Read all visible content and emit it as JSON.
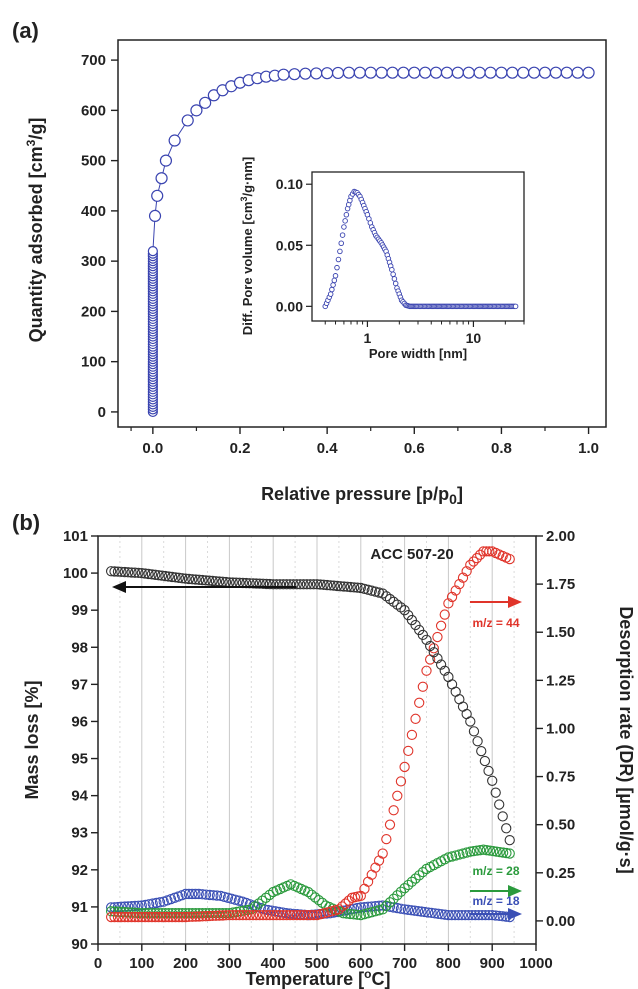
{
  "panel_a": {
    "panel_label": "(a)",
    "xlabel": "Relative pressure [p/p",
    "xlabel_sub": "0",
    "xlabel_end": "]",
    "ylabel": "Quantity adsorbed [cm",
    "ylabel_sup": "3",
    "ylabel_end": "/g]",
    "x_ticks": [
      "0.0",
      "0.2",
      "0.4",
      "0.6",
      "0.8",
      "1.0"
    ],
    "y_ticks": [
      "0",
      "100",
      "200",
      "300",
      "400",
      "500",
      "600",
      "700"
    ],
    "inset": {
      "xlabel": "Pore width [nm]",
      "ylabel": "Diff. Pore volume [cm",
      "ylabel_sup": "3",
      "ylabel_end": "/g·nm]",
      "x_ticks": [
        "1",
        "10"
      ],
      "y_ticks": [
        "0.00",
        "0.05",
        "0.10"
      ]
    }
  },
  "panel_b": {
    "panel_label": "(b)",
    "title": "ACC 507-20",
    "xlabel": "Temperature [",
    "xlabel_sup": "o",
    "xlabel_end": "C]",
    "ylabel_left": "Mass loss [%]",
    "ylabel_right": "Desorption rate (DR) [µmol/g·s]",
    "x_ticks": [
      "0",
      "100",
      "200",
      "300",
      "400",
      "500",
      "600",
      "700",
      "800",
      "900",
      "1000"
    ],
    "y_left_ticks": [
      "90",
      "91",
      "92",
      "93",
      "94",
      "95",
      "96",
      "97",
      "98",
      "99",
      "100",
      "101"
    ],
    "y_right_ticks": [
      "0.00",
      "0.25",
      "0.50",
      "0.75",
      "1.00",
      "1.25",
      "1.50",
      "1.75",
      "2.00"
    ],
    "annotations": {
      "m44": "m/z = 44",
      "m28": "m/z = 28",
      "m18": "m/z = 18"
    }
  },
  "chart_data": [
    {
      "type": "scatter",
      "panel": "(a)",
      "xlabel": "Relative pressure [p/p0]",
      "ylabel": "Quantity adsorbed [cm3/g]",
      "xlim": [
        -0.08,
        1.04
      ],
      "ylim": [
        -30,
        740
      ],
      "marker_color": "#3a44b0",
      "x": [
        0.0,
        0.0,
        0.0,
        0.0,
        0.0,
        0.0,
        0.005,
        0.01,
        0.02,
        0.03,
        0.05,
        0.08,
        0.1,
        0.12,
        0.14,
        0.16,
        0.18,
        0.2,
        0.22,
        0.24,
        0.26,
        0.28,
        0.3,
        0.35,
        0.4,
        0.45,
        0.5,
        0.55,
        0.6,
        0.65,
        0.7,
        0.75,
        0.8,
        0.85,
        0.9,
        0.95,
        1.0
      ],
      "y": [
        0,
        60,
        120,
        180,
        250,
        320,
        390,
        430,
        465,
        500,
        540,
        580,
        600,
        615,
        630,
        640,
        648,
        655,
        660,
        664,
        667,
        669,
        671,
        673,
        674,
        675,
        675,
        675,
        675,
        675,
        675,
        675,
        675,
        675,
        675,
        675,
        675
      ]
    },
    {
      "type": "scatter",
      "panel": "(a) inset",
      "xlabel": "Pore width [nm]",
      "ylabel": "Diff. Pore volume [cm3/g·nm]",
      "x_scale": "log",
      "xlim": [
        0.3,
        30
      ],
      "ylim": [
        -0.012,
        0.11
      ],
      "marker_color": "#3a44b0",
      "x": [
        0.4,
        0.45,
        0.5,
        0.55,
        0.6,
        0.65,
        0.7,
        0.75,
        0.8,
        0.85,
        0.9,
        1.0,
        1.1,
        1.2,
        1.35,
        1.5,
        1.7,
        1.9,
        2.1,
        2.3,
        2.5,
        3,
        4,
        6,
        10,
        15,
        20,
        25
      ],
      "y": [
        0.0,
        0.01,
        0.025,
        0.045,
        0.065,
        0.08,
        0.09,
        0.094,
        0.093,
        0.09,
        0.085,
        0.075,
        0.065,
        0.058,
        0.052,
        0.045,
        0.03,
        0.015,
        0.005,
        0.001,
        0.0,
        0.0,
        0.0,
        0.0,
        0.0,
        0.0,
        0.0,
        0.0
      ]
    },
    {
      "type": "scatter",
      "panel": "(b)",
      "title": "ACC 507-20",
      "xlabel": "Temperature [oC]",
      "ylabel": "Mass loss [%]",
      "y2label": "Desorption rate (DR) [µmol/g·s]",
      "xlim": [
        0,
        1000
      ],
      "ylim": [
        90,
        101
      ],
      "y2lim": [
        -0.12,
        2.0
      ],
      "series": [
        {
          "name": "",
          "axis": "left",
          "color": "#333333",
          "x": [
            30,
            100,
            200,
            300,
            400,
            500,
            600,
            650,
            700,
            750,
            800,
            850,
            900,
            940
          ],
          "y": [
            100.05,
            100.0,
            99.85,
            99.75,
            99.7,
            99.7,
            99.6,
            99.45,
            99.0,
            98.2,
            97.2,
            96.0,
            94.4,
            92.8
          ]
        },
        {
          "name": "m/z = 44",
          "axis": "right",
          "color": "#e0342a",
          "x": [
            30,
            100,
            200,
            300,
            400,
            500,
            550,
            580,
            600,
            650,
            700,
            750,
            800,
            850,
            880,
            900,
            940
          ],
          "y": [
            0.02,
            0.02,
            0.02,
            0.03,
            0.03,
            0.03,
            0.06,
            0.12,
            0.13,
            0.35,
            0.8,
            1.3,
            1.65,
            1.85,
            1.92,
            1.92,
            1.88
          ]
        },
        {
          "name": "m/z = 28",
          "axis": "right",
          "color": "#2a9a3c",
          "x": [
            30,
            100,
            200,
            300,
            350,
            400,
            440,
            480,
            520,
            560,
            600,
            650,
            700,
            750,
            800,
            850,
            880,
            940
          ],
          "y": [
            0.05,
            0.04,
            0.04,
            0.04,
            0.06,
            0.15,
            0.19,
            0.15,
            0.08,
            0.04,
            0.03,
            0.06,
            0.17,
            0.27,
            0.33,
            0.36,
            0.37,
            0.35
          ]
        },
        {
          "name": "m/z = 18",
          "axis": "right",
          "color": "#3a4fb5",
          "x": [
            30,
            100,
            150,
            200,
            230,
            280,
            330,
            380,
            430,
            480,
            530,
            600,
            650,
            700,
            800,
            900,
            940
          ],
          "y": [
            0.07,
            0.08,
            0.1,
            0.14,
            0.14,
            0.13,
            0.1,
            0.06,
            0.04,
            0.03,
            0.04,
            0.07,
            0.08,
            0.06,
            0.03,
            0.03,
            0.02
          ]
        }
      ]
    }
  ]
}
